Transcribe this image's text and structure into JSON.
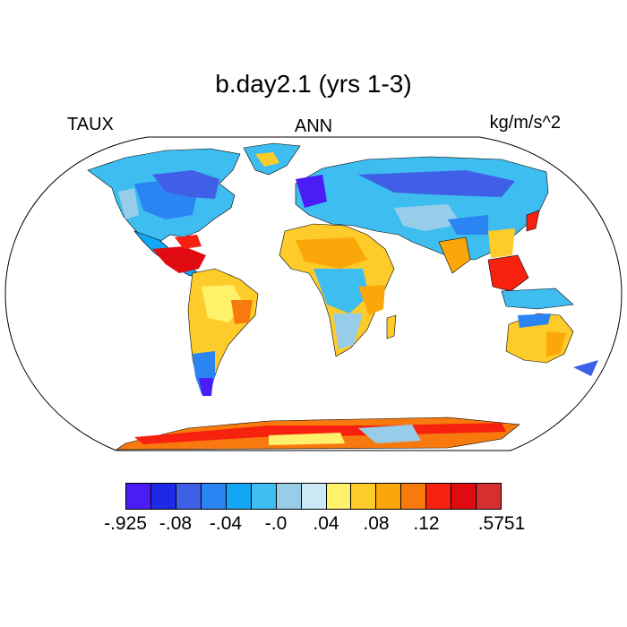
{
  "header": {
    "title": "b.day2.1 (yrs 1-3)",
    "variable": "TAUX",
    "season": "ANN",
    "units": "kg/m/s^2"
  },
  "colorbar": {
    "colors": [
      "#4b1cf5",
      "#1c2ae8",
      "#3f60e6",
      "#2a85f2",
      "#12a6f5",
      "#3ebdf0",
      "#98cdea",
      "#cbe8f5",
      "#fff16a",
      "#fdcc2a",
      "#fba70a",
      "#f87a0f",
      "#f6210f",
      "#df0b10",
      "#d52f2f"
    ],
    "labels": [
      {
        "text": "-.925",
        "boundary": 0
      },
      {
        "text": "-.08",
        "boundary": 2
      },
      {
        "text": "-.04",
        "boundary": 4
      },
      {
        "text": "-.0",
        "boundary": 6
      },
      {
        "text": ".04",
        "boundary": 8
      },
      {
        "text": ".08",
        "boundary": 10
      },
      {
        "text": ".12",
        "boundary": 12
      },
      {
        "text": ".5751",
        "boundary": 15
      }
    ]
  },
  "map": {
    "projection": "robinson",
    "ocean_color": "#ffffff",
    "coastline_color": "#000000",
    "field": "annual mean zonal surface wind stress over land"
  }
}
